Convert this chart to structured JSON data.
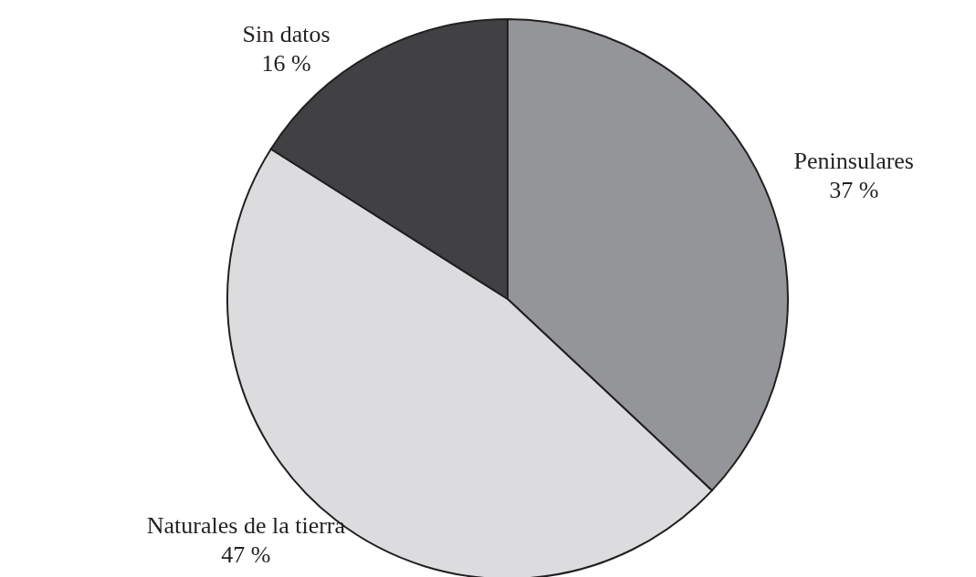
{
  "chart_data": {
    "type": "pie",
    "categories": [
      "Peninsulares",
      "Naturales de la tierra",
      "Sin datos"
    ],
    "values": [
      37,
      47,
      16
    ],
    "colors": [
      "#939598",
      "#dcdcde",
      "#414143"
    ],
    "value_labels": [
      "37 %",
      "47 %",
      "16 %"
    ]
  }
}
